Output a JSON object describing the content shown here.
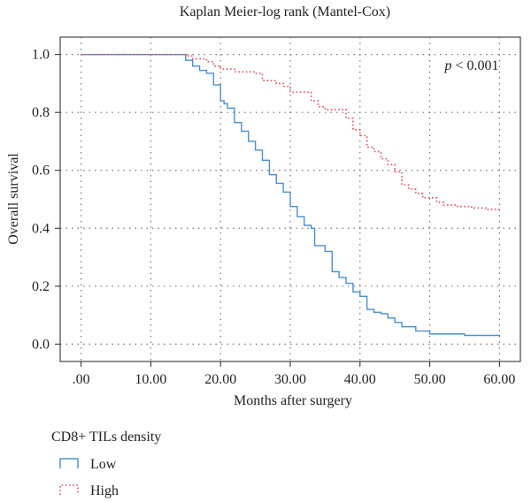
{
  "chart_data": {
    "type": "line",
    "title": "Kaplan Meier-log rank (Mantel-Cox)",
    "xlabel": "Months after surgery",
    "ylabel": "Overall survival",
    "xlim": [
      -3,
      63
    ],
    "ylim": [
      -0.06,
      1.06
    ],
    "x_ticks": [
      0,
      10,
      20,
      30,
      40,
      50,
      60
    ],
    "x_tick_labels": [
      ".00",
      "10.00",
      "20.00",
      "30.00",
      "40.00",
      "50.00",
      "60.00"
    ],
    "y_ticks": [
      0,
      0.2,
      0.4,
      0.6,
      0.8,
      1.0
    ],
    "y_tick_labels": [
      "0.0",
      "0.2",
      "0.4",
      "0.6",
      "0.8",
      "1.0"
    ],
    "grid": true,
    "annotation": {
      "italic": "p",
      "text": " < 0.001"
    },
    "legend": {
      "title": "CD8+ TILs density",
      "position": "bottom-left"
    },
    "series": [
      {
        "name": "Low",
        "color": "#4a8fcf",
        "style": "solid",
        "x": [
          0,
          15,
          16,
          17,
          18,
          19,
          20,
          20.5,
          21,
          22,
          23,
          24,
          25,
          26,
          27,
          28,
          29,
          30,
          31,
          32,
          33,
          33.5,
          35,
          36,
          37,
          38,
          39,
          40,
          41,
          42,
          43,
          44,
          45,
          46,
          48,
          50,
          55,
          60
        ],
        "y": [
          1.0,
          0.98,
          0.96,
          0.945,
          0.935,
          0.895,
          0.84,
          0.83,
          0.815,
          0.765,
          0.735,
          0.7,
          0.67,
          0.635,
          0.585,
          0.555,
          0.525,
          0.475,
          0.44,
          0.41,
          0.4,
          0.34,
          0.32,
          0.25,
          0.23,
          0.21,
          0.18,
          0.165,
          0.12,
          0.11,
          0.105,
          0.09,
          0.075,
          0.06,
          0.045,
          0.035,
          0.03,
          0.025
        ]
      },
      {
        "name": "High",
        "color": "#e0505a",
        "style": "dotted",
        "x": [
          0,
          15,
          16,
          18,
          19,
          20,
          22,
          25,
          26,
          28,
          29,
          30,
          33,
          34,
          35,
          38,
          39,
          40,
          41,
          42,
          43,
          44,
          45,
          46,
          47,
          48,
          49,
          51,
          52,
          54,
          56,
          58,
          60
        ],
        "y": [
          1.0,
          0.995,
          0.985,
          0.975,
          0.96,
          0.95,
          0.94,
          0.935,
          0.91,
          0.9,
          0.89,
          0.87,
          0.84,
          0.82,
          0.81,
          0.78,
          0.74,
          0.72,
          0.68,
          0.665,
          0.64,
          0.62,
          0.595,
          0.55,
          0.535,
          0.52,
          0.505,
          0.49,
          0.48,
          0.475,
          0.47,
          0.465,
          0.465
        ]
      }
    ]
  }
}
